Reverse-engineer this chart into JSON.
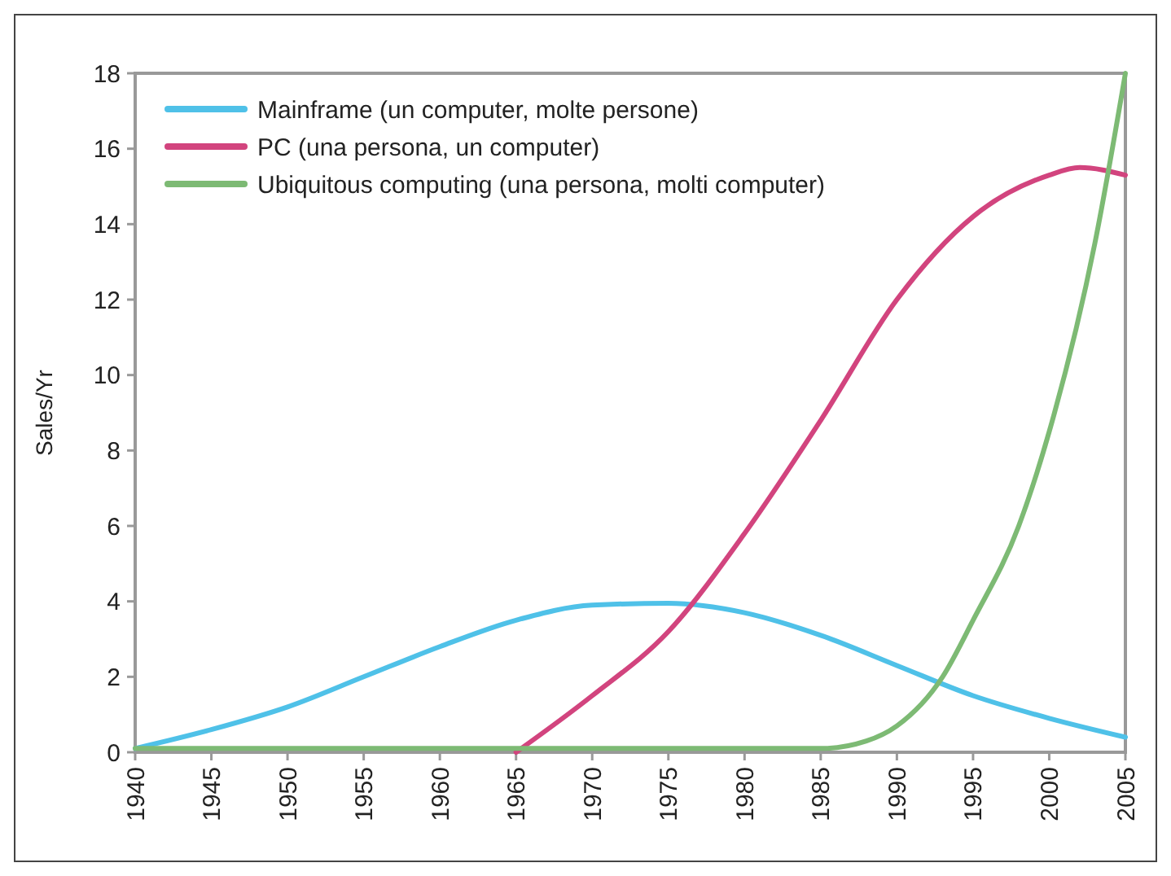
{
  "chart_data": {
    "type": "line",
    "ylabel": "Sales/Yr",
    "xlim": [
      1940,
      2005
    ],
    "xticks": [
      1940,
      1945,
      1950,
      1955,
      1960,
      1965,
      1970,
      1975,
      1980,
      1985,
      1990,
      1995,
      2000,
      2005
    ],
    "ylim": [
      0,
      18
    ],
    "yticks": [
      0,
      2,
      4,
      6,
      8,
      10,
      12,
      14,
      16,
      18
    ],
    "legend": "top left",
    "grid": false,
    "series": [
      {
        "name": "Mainframe (un computer, molte persone)",
        "color": "#4fc1e8",
        "x": [
          1940,
          1945,
          1950,
          1955,
          1960,
          1965,
          1970,
          1975,
          1980,
          1985,
          1990,
          1995,
          2000,
          2005
        ],
        "values": [
          0.1,
          0.6,
          1.2,
          2.0,
          2.8,
          3.5,
          3.9,
          3.95,
          3.7,
          3.1,
          2.3,
          1.5,
          0.9,
          0.4
        ]
      },
      {
        "name": "PC (una persona, un computer)",
        "color": "#d2447e",
        "x": [
          1965,
          1970,
          1975,
          1980,
          1985,
          1990,
          1995,
          2000,
          2002,
          2005
        ],
        "values": [
          0,
          1.5,
          3.2,
          5.8,
          8.8,
          12,
          14.2,
          15.3,
          15.5,
          15.3
        ]
      },
      {
        "name": "Ubiquitous computing (una persona, molti computer)",
        "color": "#7dba74",
        "x": [
          1940,
          1960,
          1985,
          1988,
          1990,
          1993,
          1995,
          1998,
          2000,
          2003,
          2005
        ],
        "values": [
          0.1,
          0.1,
          0.1,
          0.3,
          0.7,
          2,
          3.5,
          6,
          8.5,
          13.5,
          18
        ]
      }
    ]
  }
}
